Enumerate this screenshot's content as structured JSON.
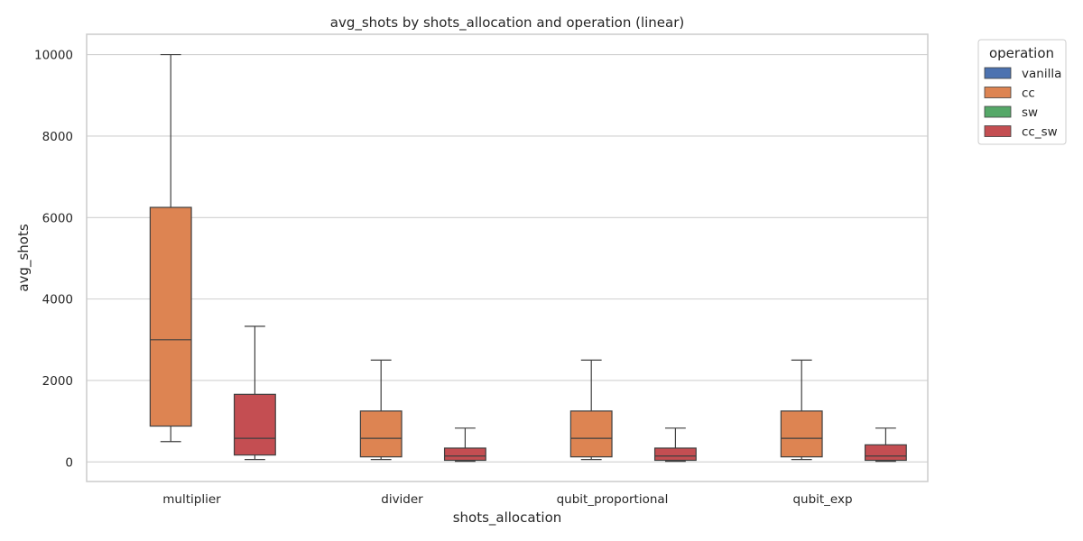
{
  "chart_data": {
    "type": "boxplot",
    "title": "avg_shots by shots_allocation and operation (linear)",
    "xlabel": "shots_allocation",
    "ylabel": "avg_shots",
    "ylim": [
      -480,
      10500
    ],
    "yticks": [
      0,
      2000,
      4000,
      6000,
      8000,
      10000
    ],
    "categories": [
      "multiplier",
      "divider",
      "qubit_proportional",
      "qubit_exp"
    ],
    "grid": "horizontal",
    "legend": {
      "title": "operation",
      "placement": "outside-top-right",
      "entries": [
        "vanilla",
        "cc",
        "sw",
        "cc_sw"
      ]
    },
    "series": [
      {
        "name": "vanilla",
        "color": "#4c72b0",
        "boxes": [
          null,
          null,
          null,
          null
        ]
      },
      {
        "name": "cc",
        "color": "#dd8452",
        "boxes": [
          {
            "min": 500,
            "q1": 880,
            "median": 3000,
            "q3": 6250,
            "max": 10000
          },
          {
            "min": 60,
            "q1": 125,
            "median": 580,
            "q3": 1250,
            "max": 2500
          },
          {
            "min": 60,
            "q1": 125,
            "median": 580,
            "q3": 1250,
            "max": 2500
          },
          {
            "min": 60,
            "q1": 125,
            "median": 580,
            "q3": 1250,
            "max": 2500
          }
        ]
      },
      {
        "name": "sw",
        "color": "#55a868",
        "boxes": [
          null,
          null,
          null,
          null
        ]
      },
      {
        "name": "cc_sw",
        "color": "#c44e52",
        "boxes": [
          {
            "min": 60,
            "q1": 170,
            "median": 580,
            "q3": 1660,
            "max": 3330
          },
          {
            "min": 15,
            "q1": 40,
            "median": 145,
            "q3": 340,
            "max": 830
          },
          {
            "min": 15,
            "q1": 40,
            "median": 145,
            "q3": 340,
            "max": 830
          },
          {
            "min": 15,
            "q1": 40,
            "median": 145,
            "q3": 420,
            "max": 830
          }
        ]
      }
    ]
  }
}
